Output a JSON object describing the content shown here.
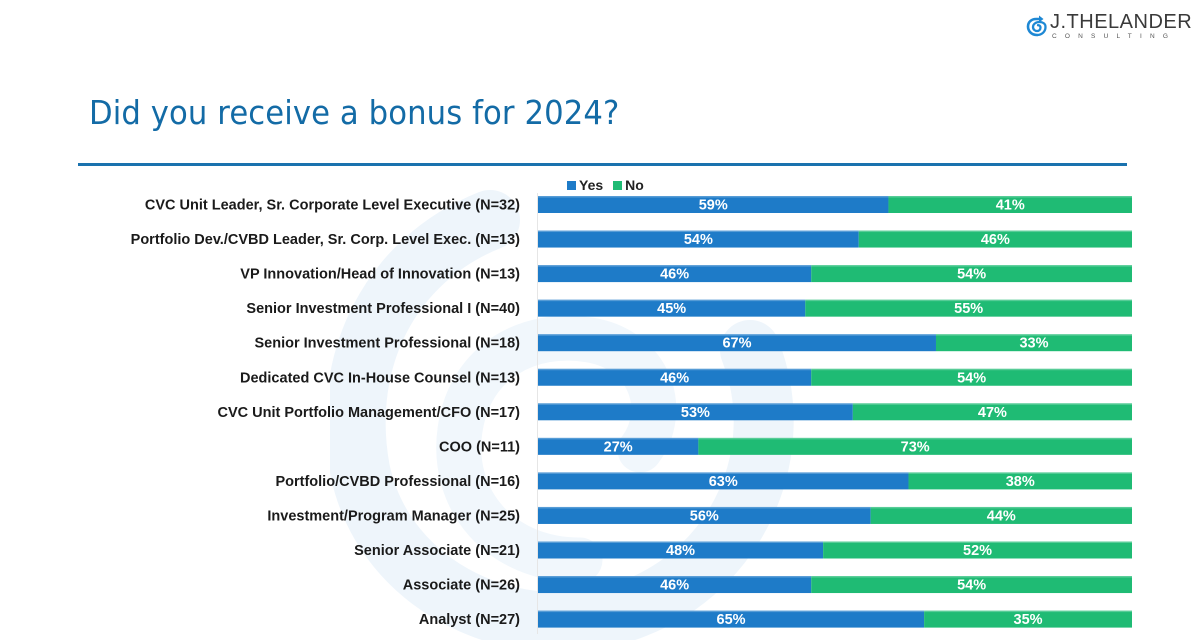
{
  "logo": {
    "brand": "J.THELANDER",
    "sub": "CONSULTING",
    "icon": "spiral-arrow-icon",
    "color": "#1e88d4"
  },
  "header": {
    "title": "Did you receive a bonus for 2024?"
  },
  "colors": {
    "title": "#136ba6",
    "yes": "#1e7bc8",
    "no": "#1fbb74",
    "rule": "#1a72ae"
  },
  "chart_data": {
    "type": "bar",
    "orientation": "horizontal",
    "stacked": true,
    "stack_mode": "percent",
    "title": "Did you receive a bonus for 2024?",
    "xlabel": "",
    "ylabel": "",
    "xlim": [
      0,
      100
    ],
    "grid": false,
    "legend": {
      "position": "top-left",
      "entries": [
        "Yes",
        "No"
      ]
    },
    "categories": [
      "CVC Unit Leader, Sr. Corporate Level Executive (N=32)",
      "Portfolio Dev./CVBD Leader, Sr. Corp. Level Exec. (N=13)",
      "VP Innovation/Head of Innovation (N=13)",
      "Senior Investment Professional I (N=40)",
      "Senior Investment Professional (N=18)",
      "Dedicated CVC In-House Counsel (N=13)",
      "CVC Unit Portfolio Management/CFO (N=17)",
      "COO (N=11)",
      "Portfolio/CVBD Professional (N=16)",
      "Investment/Program Manager (N=25)",
      "Senior Associate (N=21)",
      "Associate (N=26)",
      "Analyst (N=27)"
    ],
    "series": [
      {
        "name": "Yes",
        "color": "#1e7bc8",
        "values": [
          59,
          54,
          46,
          45,
          67,
          46,
          53,
          27,
          63,
          56,
          48,
          46,
          65
        ]
      },
      {
        "name": "No",
        "color": "#1fbb74",
        "values": [
          41,
          46,
          54,
          55,
          33,
          54,
          47,
          73,
          38,
          44,
          52,
          54,
          35
        ]
      }
    ],
    "value_format": "{v}%"
  }
}
